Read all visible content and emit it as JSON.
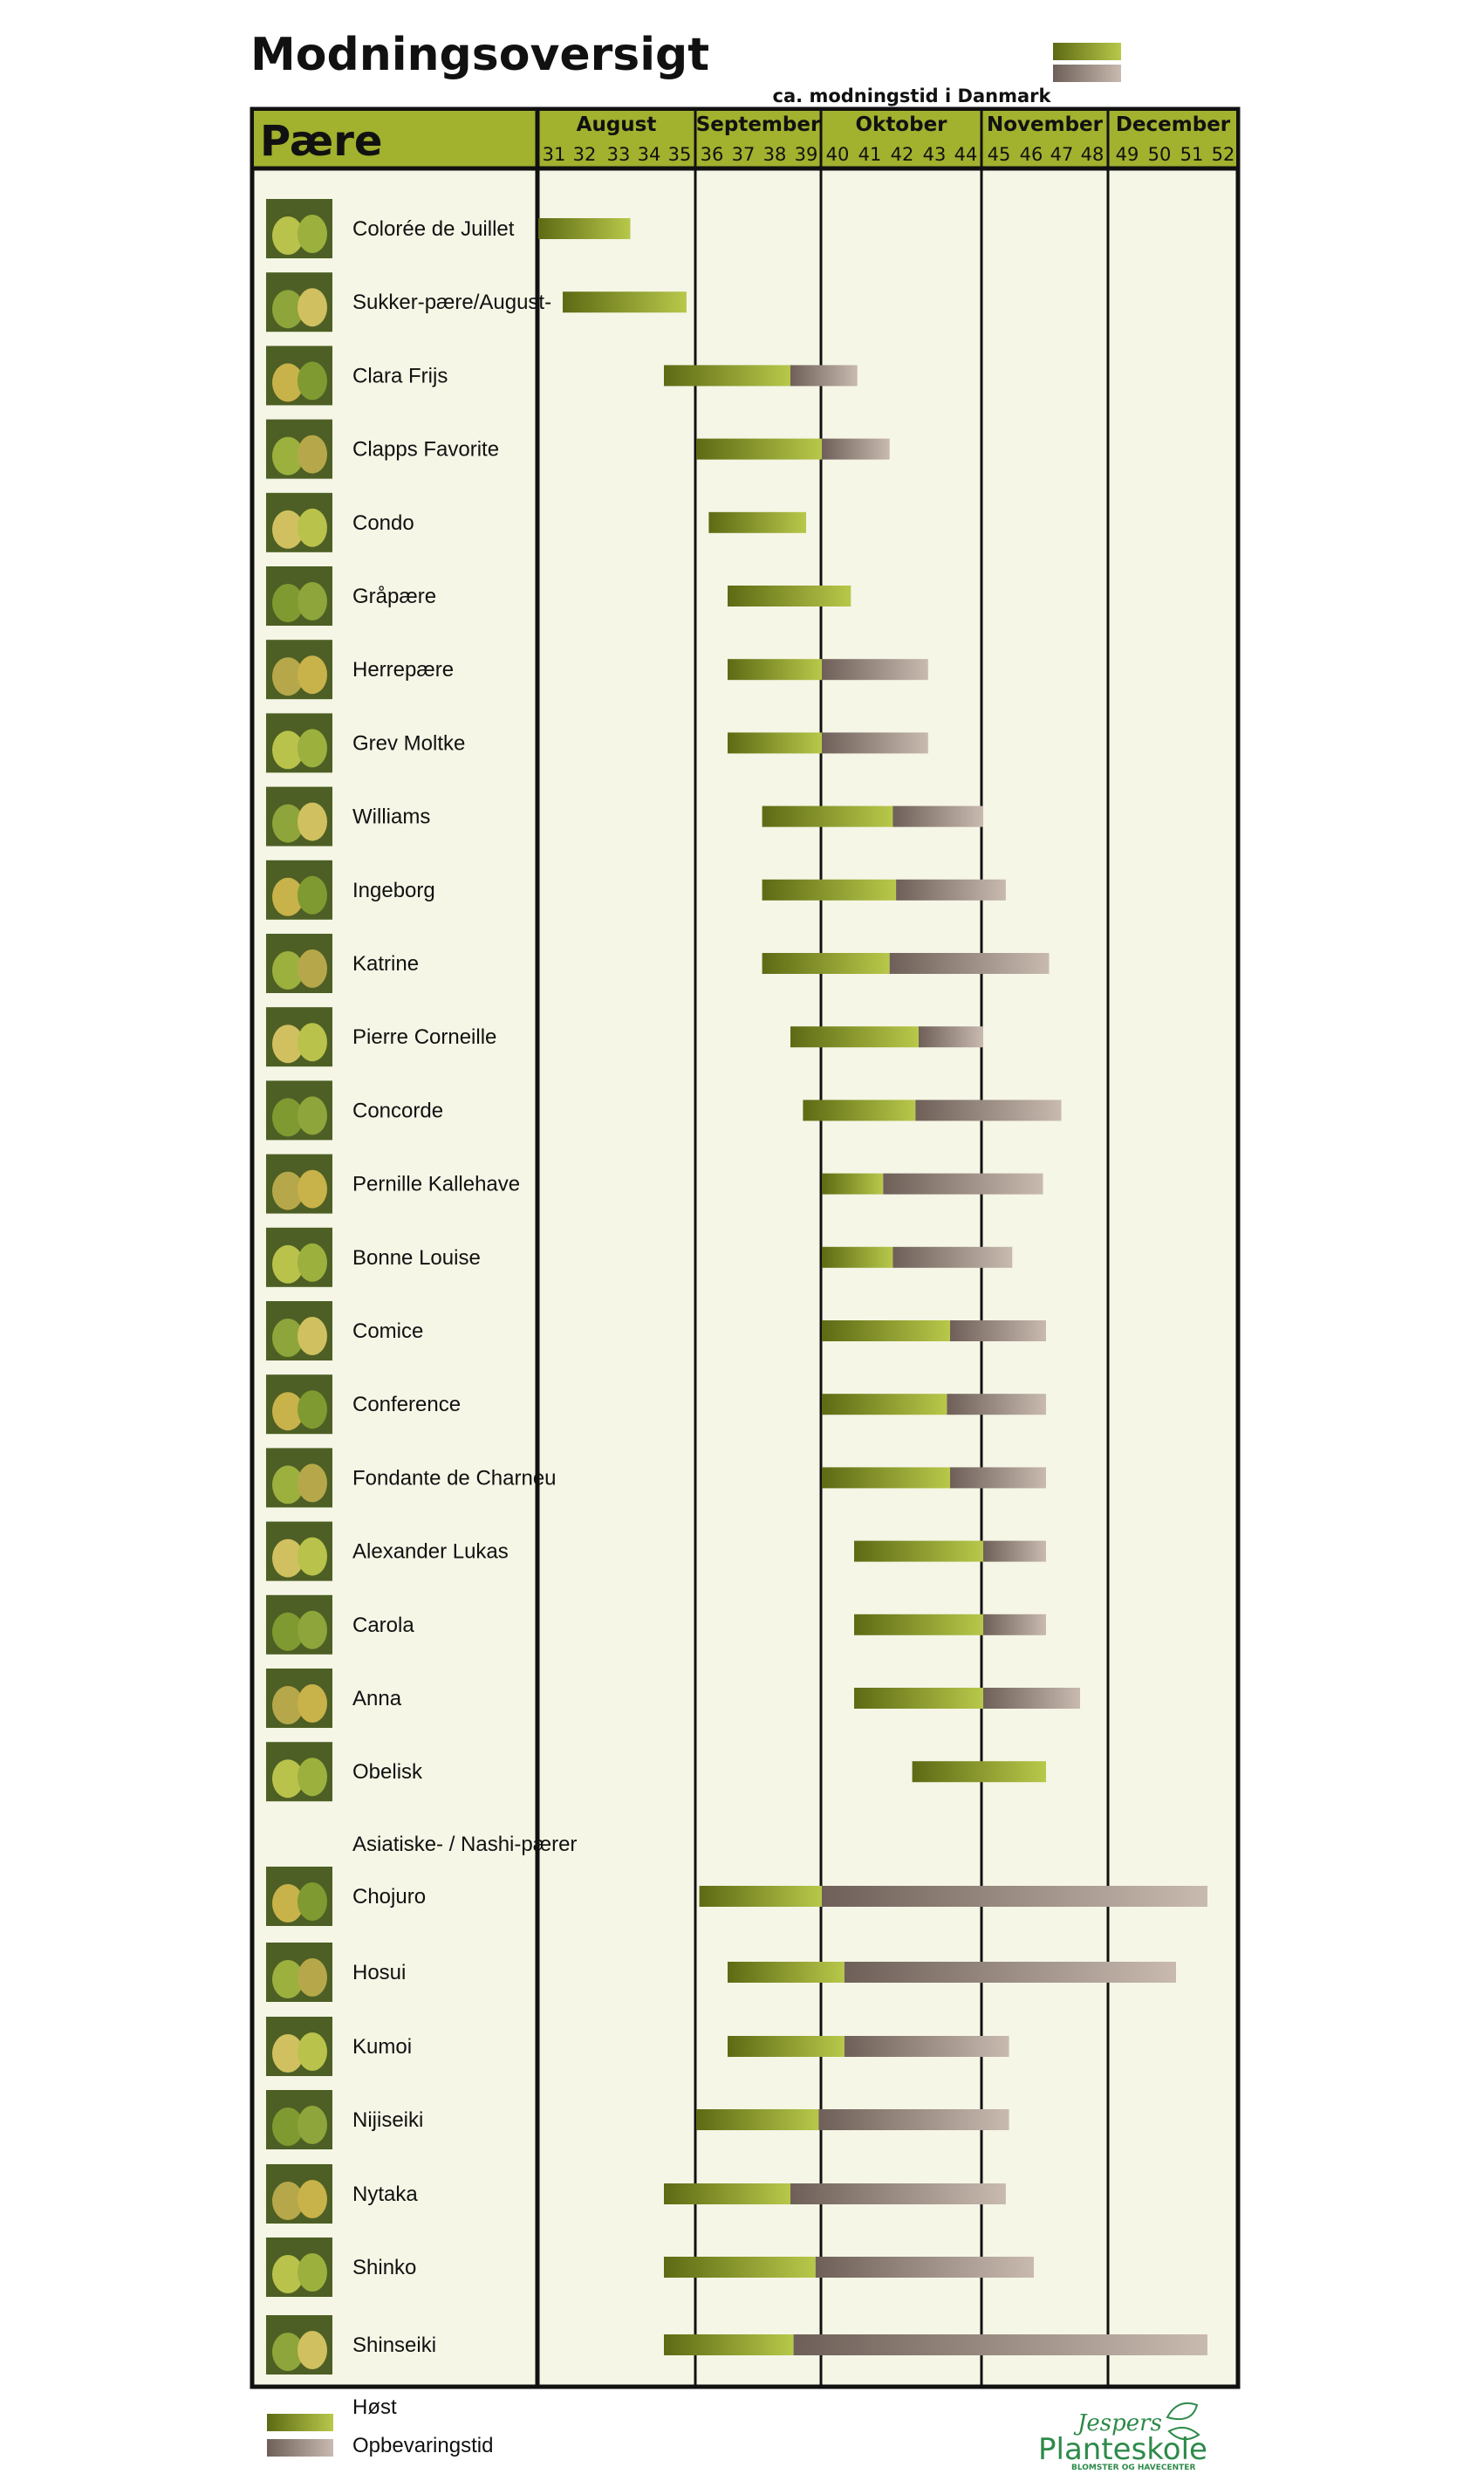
{
  "title": "Modningsoversigt",
  "subtitle": "ca. modningstid i Danmark",
  "header_label": "Pære",
  "section_label": "Asiatiske- / Nashi-pærer",
  "legend": {
    "harvest_label": "Høst",
    "storage_label": "Opbevaringstid"
  },
  "logo": {
    "script": "Jespers",
    "main": "Planteskole",
    "tagline": "BLOMSTER OG HAVECENTER",
    "color": "#2e8a4a"
  },
  "colors": {
    "harvest": "#9aac2e",
    "harvest_dark": "#6b7a1c",
    "storage": "#b3a49a",
    "storage_dark": "#7c6c62",
    "chart_bg": "#f5f6e6",
    "header_bg": "#a2b12e"
  },
  "icons": [
    "pear-photo-thumbnail"
  ],
  "chart_data": {
    "type": "gantt",
    "x_axis": {
      "unit": "week",
      "weeks": [
        31,
        32,
        33,
        34,
        35,
        36,
        37,
        38,
        39,
        40,
        41,
        42,
        43,
        44,
        45,
        46,
        47,
        48,
        49,
        50,
        51,
        52
      ],
      "range": [
        31,
        52
      ],
      "months": [
        {
          "name": "August",
          "start": 31,
          "end": 35
        },
        {
          "name": "September",
          "start": 36,
          "end": 39
        },
        {
          "name": "Oktober",
          "start": 40,
          "end": 44
        },
        {
          "name": "November",
          "start": 45,
          "end": 48
        },
        {
          "name": "December",
          "start": 49,
          "end": 52
        }
      ]
    },
    "series": [
      {
        "name": "Høst"
      },
      {
        "name": "Opbevaringstid"
      }
    ],
    "groups": [
      {
        "label": "",
        "items": [
          {
            "name": "Colorée de Juillet",
            "harvest": [
              31.0,
              33.9
            ],
            "storage": null
          },
          {
            "name": "Sukker-pære/August-",
            "harvest": [
              31.8,
              35.7
            ],
            "storage": null
          },
          {
            "name": "Clara Frijs",
            "harvest": [
              35.0,
              39.0
            ],
            "storage": [
              39.0,
              41.1
            ]
          },
          {
            "name": "Clapps Favorite",
            "harvest": [
              36.0,
              40.0
            ],
            "storage": [
              40.0,
              42.1
            ]
          },
          {
            "name": "Condo",
            "harvest": [
              36.4,
              39.5
            ],
            "storage": null
          },
          {
            "name": "Gråpære",
            "harvest": [
              37.0,
              40.9
            ],
            "storage": null
          },
          {
            "name": "Herrepære",
            "harvest": [
              37.0,
              40.0
            ],
            "storage": [
              40.0,
              43.3
            ]
          },
          {
            "name": "Grev Moltke",
            "harvest": [
              37.0,
              40.0
            ],
            "storage": [
              40.0,
              43.3
            ]
          },
          {
            "name": "Williams",
            "harvest": [
              38.1,
              42.2
            ],
            "storage": [
              42.2,
              45.0
            ]
          },
          {
            "name": "Ingeborg",
            "harvest": [
              38.1,
              42.3
            ],
            "storage": [
              42.3,
              45.7
            ]
          },
          {
            "name": "Katrine",
            "harvest": [
              38.1,
              42.1
            ],
            "storage": [
              42.1,
              47.1
            ]
          },
          {
            "name": "Pierre Corneille",
            "harvest": [
              39.0,
              43.0
            ],
            "storage": [
              43.0,
              45.0
            ]
          },
          {
            "name": "Concorde",
            "harvest": [
              39.4,
              42.9
            ],
            "storage": [
              42.9,
              47.5
            ]
          },
          {
            "name": "Pernille Kallehave",
            "harvest": [
              40.0,
              41.9
            ],
            "storage": [
              41.9,
              46.9
            ]
          },
          {
            "name": "Bonne Louise",
            "harvest": [
              40.0,
              42.2
            ],
            "storage": [
              42.2,
              45.9
            ]
          },
          {
            "name": "Comice",
            "harvest": [
              40.0,
              44.0
            ],
            "storage": [
              44.0,
              47.0
            ]
          },
          {
            "name": "Conference",
            "harvest": [
              40.0,
              43.9
            ],
            "storage": [
              43.9,
              47.0
            ]
          },
          {
            "name": "Fondante de Charneu",
            "harvest": [
              40.0,
              44.0
            ],
            "storage": [
              44.0,
              47.0
            ]
          },
          {
            "name": "Alexander Lukas",
            "harvest": [
              41.0,
              45.0
            ],
            "storage": [
              45.0,
              47.0
            ]
          },
          {
            "name": "Carola",
            "harvest": [
              41.0,
              45.0
            ],
            "storage": [
              45.0,
              47.0
            ]
          },
          {
            "name": "Anna",
            "harvest": [
              41.0,
              45.0
            ],
            "storage": [
              45.0,
              48.1
            ]
          },
          {
            "name": "Obelisk",
            "harvest": [
              42.8,
              47.0
            ],
            "storage": null
          }
        ]
      },
      {
        "label": "Asiatiske- / Nashi-pærer",
        "items": [
          {
            "name": "Chojuro",
            "harvest": [
              36.1,
              40.0
            ],
            "storage": [
              40.0,
              52.0
            ]
          },
          {
            "name": "Hosui",
            "harvest": [
              37.0,
              40.7
            ],
            "storage": [
              40.7,
              51.0
            ]
          },
          {
            "name": "Kumoi",
            "harvest": [
              37.0,
              40.7
            ],
            "storage": [
              40.7,
              45.8
            ]
          },
          {
            "name": "Nijiseiki",
            "harvest": [
              36.0,
              39.9
            ],
            "storage": [
              39.9,
              45.8
            ]
          },
          {
            "name": "Nytaka",
            "harvest": [
              35.0,
              39.0
            ],
            "storage": [
              39.0,
              45.7
            ]
          },
          {
            "name": "Shinko",
            "harvest": [
              35.0,
              39.8
            ],
            "storage": [
              39.8,
              46.6
            ]
          },
          {
            "name": "Shinseiki",
            "harvest": [
              35.0,
              39.1
            ],
            "storage": [
              39.1,
              52.0
            ]
          }
        ]
      }
    ]
  }
}
